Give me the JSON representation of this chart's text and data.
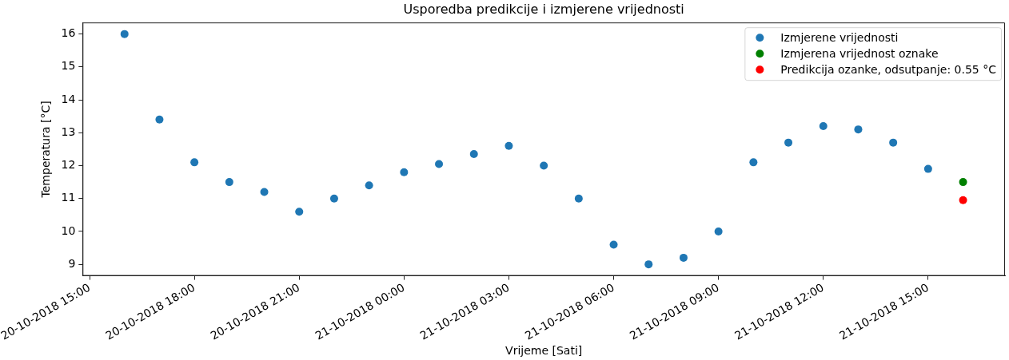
{
  "chart_data": {
    "type": "scatter",
    "title": "Usporedba predikcije i izmjerene vrijednosti",
    "xlabel": "Vrijeme [Sati]",
    "ylabel": "Temperatura [°C]",
    "series": [
      {
        "name": "Izmjerene vrijednosti",
        "color": "#1f77b4",
        "x": [
          "2018-10-20T16:00",
          "2018-10-20T17:00",
          "2018-10-20T18:00",
          "2018-10-20T19:00",
          "2018-10-20T20:00",
          "2018-10-20T21:00",
          "2018-10-20T22:00",
          "2018-10-20T23:00",
          "2018-10-21T00:00",
          "2018-10-21T01:00",
          "2018-10-21T02:00",
          "2018-10-21T03:00",
          "2018-10-21T04:00",
          "2018-10-21T05:00",
          "2018-10-21T06:00",
          "2018-10-21T07:00",
          "2018-10-21T08:00",
          "2018-10-21T09:00",
          "2018-10-21T10:00",
          "2018-10-21T11:00",
          "2018-10-21T12:00",
          "2018-10-21T13:00",
          "2018-10-21T14:00",
          "2018-10-21T15:00"
        ],
        "values": [
          16.0,
          13.4,
          12.1,
          11.5,
          11.2,
          10.6,
          11.0,
          11.4,
          11.8,
          12.05,
          12.35,
          12.6,
          12.0,
          11.0,
          9.6,
          9.0,
          9.2,
          10.0,
          12.1,
          12.7,
          13.2,
          13.1,
          12.7,
          11.9
        ]
      },
      {
        "name": "Izmjerena vrijednost oznake",
        "color": "#008000",
        "x": [
          "2018-10-21T16:00"
        ],
        "values": [
          11.5
        ]
      },
      {
        "name": "Predikcija ozanke, odsutpanje: 0.55 °C",
        "color": "#ff0000",
        "x": [
          "2018-10-21T16:00"
        ],
        "values": [
          10.95
        ]
      }
    ],
    "xlim": [
      "2018-10-20T14:48",
      "2018-10-21T17:12"
    ],
    "xticks": [
      {
        "value": "2018-10-20T15:00",
        "label": "20-10-2018 15:00"
      },
      {
        "value": "2018-10-20T18:00",
        "label": "20-10-2018 18:00"
      },
      {
        "value": "2018-10-20T21:00",
        "label": "20-10-2018 21:00"
      },
      {
        "value": "2018-10-21T00:00",
        "label": "21-10-2018 00:00"
      },
      {
        "value": "2018-10-21T03:00",
        "label": "21-10-2018 03:00"
      },
      {
        "value": "2018-10-21T06:00",
        "label": "21-10-2018 06:00"
      },
      {
        "value": "2018-10-21T09:00",
        "label": "21-10-2018 09:00"
      },
      {
        "value": "2018-10-21T12:00",
        "label": "21-10-2018 12:00"
      },
      {
        "value": "2018-10-21T15:00",
        "label": "21-10-2018 15:00"
      }
    ],
    "ylim": [
      8.65,
      16.35
    ],
    "yticks": [
      9,
      10,
      11,
      12,
      13,
      14,
      15,
      16
    ],
    "marker": "circle",
    "legend": "top right"
  }
}
